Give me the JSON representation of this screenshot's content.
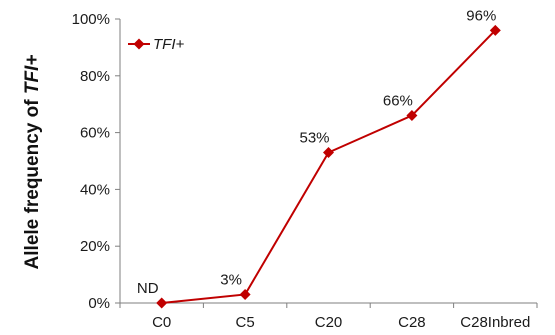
{
  "chart_data": {
    "type": "line",
    "categories": [
      "C0",
      "C5",
      "C20",
      "C28",
      "C28Inbred"
    ],
    "series": [
      {
        "name": "TFI+",
        "values": [
          0,
          3,
          53,
          66,
          96
        ]
      }
    ],
    "data_labels": [
      "ND",
      "3%",
      "53%",
      "66%",
      "96%"
    ],
    "ylabel_prefix": "Allele frequency of ",
    "ylabel_italic": "TFI+",
    "ylim": [
      0,
      100
    ],
    "yticks": [
      0,
      20,
      40,
      60,
      80,
      100
    ],
    "ytick_labels": [
      "0%",
      "20%",
      "40%",
      "60%",
      "80%",
      "100%"
    ],
    "legend_position": "top-left",
    "grid": false,
    "series_color": "#c00000",
    "axis_color": "#7f7f7f"
  }
}
